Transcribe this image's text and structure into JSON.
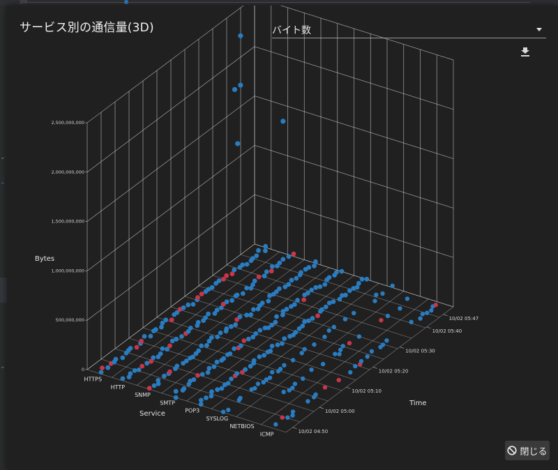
{
  "background": {
    "top_tick": "200"
  },
  "dialog": {
    "title": "サービス別の通信量(3D)",
    "metric_select": {
      "value": "バイト数"
    },
    "download_icon": "download-icon",
    "close_button": {
      "label": "閉じる",
      "icon": "block-icon"
    }
  },
  "colors": {
    "series_bytes": "#2a7cc0",
    "series_alert": "#c8364a",
    "grid": "#cfcfcf"
  },
  "chart_data": {
    "type": "scatter3d",
    "title": "",
    "xlabel": "Time",
    "ylabel": "Service",
    "zlabel": "Bytes",
    "x_ticks": [
      "10/02 04:50",
      "10/02 05:00",
      "10/02 05:10",
      "10/02 05:20",
      "10/02 05:30",
      "10/02 05:40",
      "10/02 05:47"
    ],
    "y_ticks": [
      "HTTPS",
      "HTTP",
      "SNMP",
      "SMTP",
      "POP3",
      "SYSLOG",
      "NETBIOS",
      "ICMP"
    ],
    "z_ticks": [
      "0",
      "500,000,000",
      "1,000,000,000",
      "1,500,000,000",
      "2,000,000,000",
      "2,500,000,000"
    ],
    "zlim": [
      0,
      2500000000
    ],
    "grid": true,
    "highlighted_points": [
      {
        "service": "HTTPS",
        "time": "10/02 05:38",
        "bytes": 2350000000
      },
      {
        "service": "HTTPS",
        "time": "10/02 05:36",
        "bytes": 1850000000
      },
      {
        "service": "HTTPS",
        "time": "10/02 05:38",
        "bytes": 1850000000
      },
      {
        "service": "HTTPS",
        "time": "10/02 05:37",
        "bytes": 1280000000
      },
      {
        "service": "HTTP",
        "time": "10/02 05:44",
        "bytes": 1430000000
      }
    ],
    "baseline_points_per_service": 48,
    "baseline_value_range": [
      0,
      30000000
    ]
  }
}
